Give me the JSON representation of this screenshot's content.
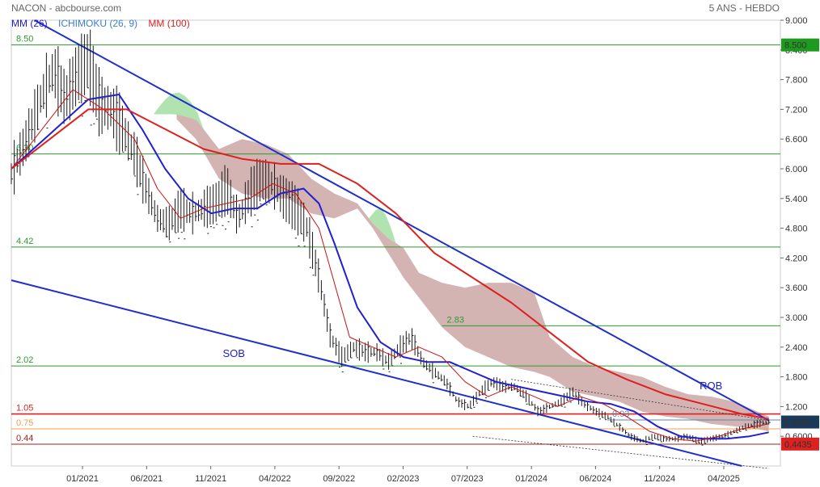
{
  "header": {
    "symbol_source": "NACON - abcbourse.com",
    "period": "5 ANS - HEBDO"
  },
  "legend": [
    {
      "label": "MM (26)",
      "color": "#1a1acc"
    },
    {
      "label": "ICHIMOKU (26, 9)",
      "color": "#3a7fd0"
    },
    {
      "label": "MM (100)",
      "color": "#dd2020"
    }
  ],
  "colors": {
    "price": "#1a1a1a",
    "mm26": "#2020d0",
    "mm100": "#dd2020",
    "tenkan": "#cc1010",
    "trendline": "#1f2fcc",
    "kumo_bear": "#c9a0a0",
    "kumo_bull": "#a8e0a8",
    "level_green": "#2e9a2e",
    "level_red": "#dd2020",
    "level_orange": "#f0a050",
    "level_darkred": "#a02020"
  },
  "chart_data": {
    "type": "line",
    "title": "",
    "xlabel": "",
    "ylabel": "",
    "ylim": [
      0,
      9.0
    ],
    "y_ticks": [
      "9.000",
      "8.400",
      "7.800",
      "7.200",
      "6.600",
      "6.000",
      "5.400",
      "4.800",
      "4.200",
      "3.600",
      "3.000",
      "2.400",
      "1.800",
      "1.200",
      "0.6000"
    ],
    "x_ticks": [
      "01/2021",
      "06/2021",
      "11/2021",
      "04/2022",
      "09/2022",
      "02/2023",
      "07/2023",
      "01/2024",
      "06/2024",
      "11/2024",
      "04/2025"
    ],
    "grid": false,
    "legend_position": "top-left",
    "price_tags": [
      {
        "value": 8.5,
        "text": "8.500",
        "color": "#1e9a1e"
      },
      {
        "value": 0.888,
        "text": "0.8880",
        "color": "#1a3a5a"
      },
      {
        "value": 0.4435,
        "text": "0.4435",
        "color": "#dd2020"
      }
    ],
    "levels": [
      {
        "value": 8.5,
        "label": "8.50",
        "color": "#2e9a2e",
        "from": 0
      },
      {
        "value": 6.3,
        "label": "6.30",
        "color": "#2e9a2e",
        "from": 0
      },
      {
        "value": 4.42,
        "label": "4.42",
        "color": "#2e9a2e",
        "from": 0
      },
      {
        "value": 2.83,
        "label": "2.83",
        "color": "#2e9a2e",
        "from": 0.56
      },
      {
        "value": 2.02,
        "label": "2.02",
        "color": "#2e9a2e",
        "from": 0
      },
      {
        "value": 1.05,
        "label": "1.05",
        "color": "#dd2020",
        "from": 0
      },
      {
        "value": 0.93,
        "label": "0.93",
        "color": "#5a8ab0",
        "from": 0.775
      },
      {
        "value": 0.75,
        "label": "0.75",
        "color": "#f0a050",
        "from": 0
      },
      {
        "value": 0.44,
        "label": "0.44",
        "color": "#a02020",
        "from": 0
      }
    ],
    "annotations": [
      {
        "text": "SOB",
        "t": 0.275,
        "value": 2.2,
        "color": "#2020c0"
      },
      {
        "text": "ROB",
        "t": 0.895,
        "value": 1.55,
        "color": "#2020c0"
      }
    ],
    "trendlines": [
      {
        "name": "upper",
        "t": [
          0.03,
          0.985
        ],
        "values": [
          9.0,
          0.92
        ]
      },
      {
        "name": "lower",
        "t": [
          0.0,
          0.95
        ],
        "values": [
          3.75,
          -0.02
        ]
      }
    ],
    "channel": [
      {
        "t": [
          0.6,
          0.985
        ],
        "values": [
          0.6,
          -0.05
        ]
      },
      {
        "t": [
          0.65,
          0.985
        ],
        "values": [
          1.75,
          0.92
        ]
      }
    ],
    "series": [
      {
        "name": "",
        "kind": "price",
        "t": [
          0.0,
          0.02,
          0.04,
          0.055,
          0.07,
          0.085,
          0.1,
          0.115,
          0.13,
          0.145,
          0.16,
          0.175,
          0.19,
          0.205,
          0.22,
          0.235,
          0.25,
          0.265,
          0.28,
          0.295,
          0.31,
          0.325,
          0.34,
          0.355,
          0.37,
          0.385,
          0.4,
          0.415,
          0.43,
          0.445,
          0.46,
          0.475,
          0.49,
          0.505,
          0.52,
          0.535,
          0.55,
          0.565,
          0.58,
          0.595,
          0.61,
          0.625,
          0.64,
          0.655,
          0.67,
          0.685,
          0.7,
          0.715,
          0.73,
          0.745,
          0.76,
          0.775,
          0.79,
          0.805,
          0.82,
          0.835,
          0.85,
          0.865,
          0.88,
          0.895,
          0.91,
          0.925,
          0.94,
          0.955,
          0.97,
          0.985
        ],
        "values": [
          5.9,
          6.6,
          7.5,
          8.0,
          7.4,
          7.9,
          8.2,
          7.3,
          7.2,
          6.8,
          6.3,
          5.6,
          5.0,
          4.9,
          5.2,
          5.1,
          5.2,
          5.3,
          5.6,
          5.0,
          5.5,
          5.8,
          5.7,
          5.4,
          5.2,
          4.8,
          3.8,
          2.6,
          2.2,
          2.4,
          2.3,
          2.3,
          2.1,
          2.4,
          2.6,
          2.1,
          1.9,
          1.7,
          1.3,
          1.2,
          1.5,
          1.7,
          1.6,
          1.6,
          1.4,
          1.1,
          1.2,
          1.3,
          1.5,
          1.25,
          1.1,
          1.0,
          0.8,
          0.6,
          0.5,
          0.6,
          0.55,
          0.55,
          0.6,
          0.5,
          0.55,
          0.6,
          0.7,
          0.8,
          0.85,
          0.888
        ]
      },
      {
        "name": "",
        "kind": "mm26",
        "t": [
          0.0,
          0.05,
          0.1,
          0.14,
          0.17,
          0.2,
          0.23,
          0.26,
          0.29,
          0.32,
          0.35,
          0.38,
          0.4,
          0.42,
          0.45,
          0.48,
          0.51,
          0.54,
          0.57,
          0.6,
          0.63,
          0.66,
          0.69,
          0.72,
          0.75,
          0.78,
          0.81,
          0.84,
          0.87,
          0.9,
          0.93,
          0.96,
          0.985
        ],
        "values": [
          6.0,
          6.7,
          7.4,
          7.5,
          6.8,
          6.0,
          5.4,
          5.1,
          5.2,
          5.2,
          5.5,
          5.6,
          5.3,
          4.5,
          3.2,
          2.5,
          2.2,
          2.1,
          2.1,
          1.9,
          1.7,
          1.6,
          1.5,
          1.4,
          1.3,
          1.25,
          1.1,
          0.8,
          0.6,
          0.55,
          0.55,
          0.6,
          0.68
        ]
      },
      {
        "name": "",
        "kind": "tenkan",
        "t": [
          0.0,
          0.04,
          0.08,
          0.12,
          0.16,
          0.19,
          0.22,
          0.25,
          0.28,
          0.31,
          0.34,
          0.37,
          0.4,
          0.42,
          0.44,
          0.47,
          0.5,
          0.53,
          0.56,
          0.59,
          0.62,
          0.65,
          0.68,
          0.71,
          0.74,
          0.77,
          0.8,
          0.83,
          0.86,
          0.89,
          0.92,
          0.95,
          0.985
        ],
        "values": [
          6.0,
          6.8,
          7.6,
          7.2,
          6.6,
          5.6,
          5.0,
          5.2,
          5.3,
          5.4,
          5.7,
          5.5,
          4.8,
          3.7,
          2.6,
          2.4,
          2.2,
          2.4,
          2.2,
          1.7,
          1.4,
          1.6,
          1.4,
          1.2,
          1.4,
          1.25,
          1.0,
          0.7,
          0.55,
          0.5,
          0.6,
          0.75,
          0.85
        ]
      },
      {
        "name": "",
        "kind": "mm100",
        "t": [
          0.0,
          0.05,
          0.1,
          0.15,
          0.2,
          0.25,
          0.3,
          0.35,
          0.4,
          0.45,
          0.5,
          0.55,
          0.6,
          0.65,
          0.7,
          0.75,
          0.8,
          0.85,
          0.9,
          0.95,
          0.985
        ],
        "values": [
          6.0,
          6.6,
          7.2,
          7.2,
          6.8,
          6.4,
          6.2,
          6.1,
          6.1,
          5.7,
          5.1,
          4.3,
          3.8,
          3.3,
          2.7,
          2.1,
          1.75,
          1.45,
          1.25,
          1.05,
          0.95
        ]
      }
    ],
    "kumo": {
      "t": [
        0.215,
        0.24,
        0.27,
        0.3,
        0.33,
        0.36,
        0.39,
        0.42,
        0.45,
        0.47,
        0.49,
        0.51,
        0.53,
        0.56,
        0.59,
        0.62,
        0.65,
        0.68,
        0.7,
        0.73,
        0.76,
        0.79,
        0.82,
        0.85,
        0.88,
        0.91,
        0.94,
        0.97,
        0.985
      ],
      "upper": [
        7.1,
        7.0,
        6.4,
        6.6,
        6.5,
        6.3,
        5.8,
        5.5,
        5.3,
        4.9,
        4.6,
        4.4,
        3.9,
        3.7,
        3.6,
        3.7,
        3.7,
        3.5,
        2.6,
        2.2,
        2.0,
        1.9,
        1.8,
        1.6,
        1.45,
        1.4,
        1.3,
        1.1,
        1.0
      ],
      "lower": [
        7.0,
        6.6,
        5.8,
        5.5,
        5.4,
        5.4,
        5.1,
        5.0,
        5.2,
        4.8,
        4.3,
        3.8,
        3.4,
        2.8,
        2.4,
        2.2,
        2.0,
        1.9,
        1.8,
        1.5,
        1.4,
        1.3,
        1.1,
        1.0,
        0.95,
        0.85,
        0.8,
        0.75,
        0.7
      ],
      "bull_segments": [
        [
          0.185,
          0.25
        ],
        [
          0.465,
          0.5
        ]
      ]
    }
  }
}
